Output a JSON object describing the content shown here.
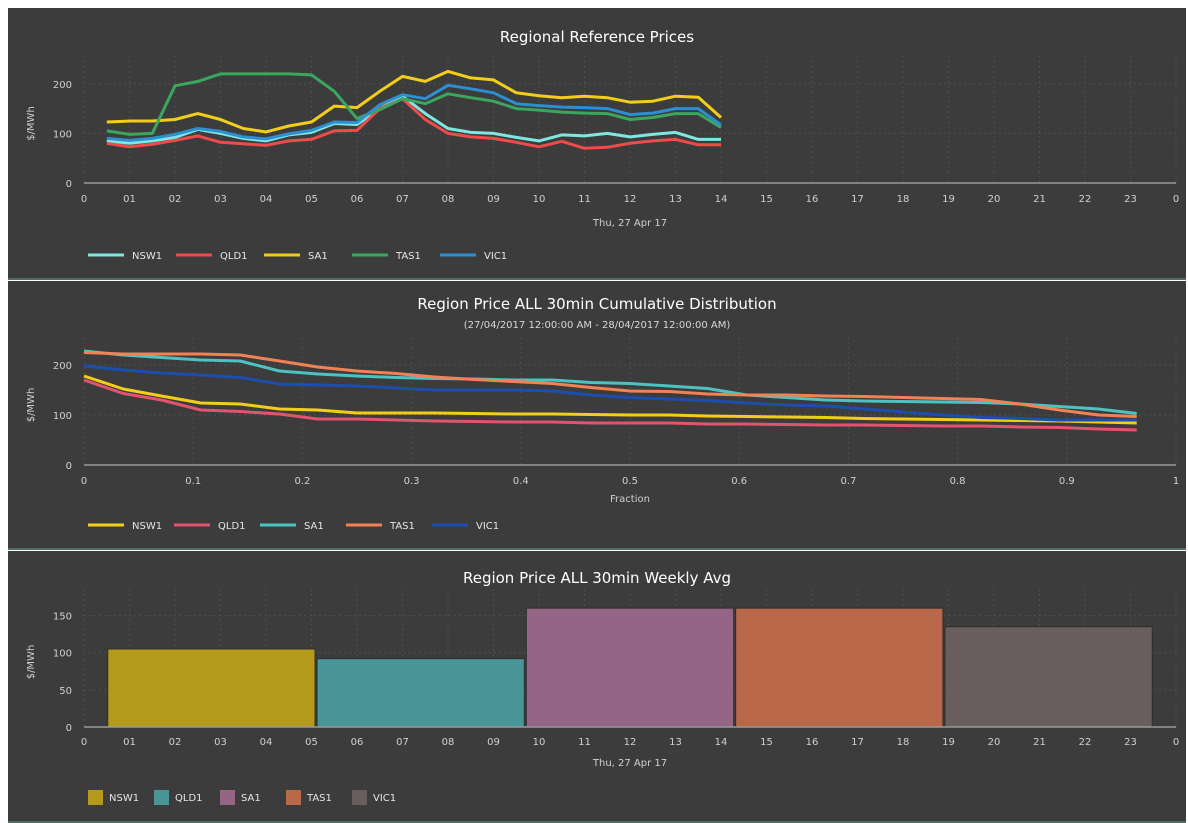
{
  "chart_data": [
    {
      "id": "regional-prices",
      "type": "line",
      "title": "Regional Reference Prices",
      "subtitle": "",
      "xlabel": "Thu, 27 Apr 17",
      "ylabel": "$/MWh",
      "xlim": [
        0,
        24
      ],
      "ylim": [
        0,
        240
      ],
      "yticks": [
        0,
        100,
        200
      ],
      "xtick_labels": [
        "0",
        "01",
        "02",
        "03",
        "04",
        "05",
        "06",
        "07",
        "08",
        "09",
        "10",
        "11",
        "12",
        "13",
        "14",
        "15",
        "16",
        "17",
        "18",
        "19",
        "20",
        "21",
        "22",
        "23",
        "0"
      ],
      "x": [
        0.5,
        1,
        1.5,
        2,
        2.5,
        3,
        3.5,
        4,
        4.5,
        5,
        5.5,
        6,
        6.5,
        7,
        7.5,
        8,
        8.5,
        9,
        9.5,
        10,
        10.5,
        11,
        11.5,
        12,
        12.5,
        13,
        13.5,
        14
      ],
      "series": [
        {
          "name": "NSW1",
          "color": "#7fe6e0",
          "values": [
            85,
            80,
            85,
            92,
            108,
            100,
            90,
            85,
            97,
            102,
            120,
            118,
            150,
            175,
            140,
            110,
            102,
            100,
            92,
            85,
            97,
            95,
            100,
            93,
            98,
            102,
            88,
            88
          ]
        },
        {
          "name": "QLD1",
          "color": "#ee4b4b",
          "values": [
            80,
            73,
            78,
            86,
            95,
            82,
            79,
            76,
            85,
            88,
            105,
            106,
            150,
            170,
            128,
            100,
            93,
            90,
            82,
            73,
            84,
            70,
            72,
            80,
            85,
            88,
            77,
            77
          ]
        },
        {
          "name": "SA1",
          "color": "#f2ce1b",
          "values": [
            123,
            125,
            125,
            128,
            140,
            128,
            110,
            103,
            115,
            123,
            155,
            152,
            185,
            215,
            205,
            225,
            212,
            208,
            182,
            176,
            172,
            175,
            172,
            163,
            165,
            175,
            173,
            132
          ]
        },
        {
          "name": "TAS1",
          "color": "#3aa65e",
          "values": [
            105,
            98,
            100,
            196,
            205,
            220,
            220,
            220,
            220,
            218,
            185,
            130,
            148,
            170,
            160,
            180,
            172,
            165,
            150,
            147,
            143,
            141,
            140,
            128,
            132,
            140,
            140,
            112
          ]
        },
        {
          "name": "VIC1",
          "color": "#2c8fd1",
          "values": [
            90,
            86,
            90,
            98,
            110,
            104,
            93,
            89,
            99,
            106,
            123,
            122,
            158,
            178,
            170,
            197,
            190,
            182,
            160,
            156,
            153,
            152,
            150,
            138,
            141,
            150,
            150,
            117
          ]
        }
      ]
    },
    {
      "id": "cumulative-distribution",
      "type": "line",
      "title": "Region Price ALL 30min Cumulative Distribution",
      "subtitle": "(27/04/2017 12:00:00 AM - 28/04/2017 12:00:00 AM)",
      "xlabel": "Fraction",
      "ylabel": "$/MWh",
      "xlim": [
        0,
        1
      ],
      "ylim": [
        0,
        240
      ],
      "yticks": [
        0,
        100,
        200
      ],
      "xtick_labels": [
        "0",
        "0.1",
        "0.2",
        "0.3",
        "0.4",
        "0.5",
        "0.6",
        "0.7",
        "0.8",
        "0.9",
        "1"
      ],
      "x": [
        0,
        0.036,
        0.071,
        0.107,
        0.143,
        0.179,
        0.214,
        0.25,
        0.286,
        0.321,
        0.357,
        0.393,
        0.429,
        0.464,
        0.5,
        0.536,
        0.571,
        0.607,
        0.643,
        0.679,
        0.714,
        0.75,
        0.786,
        0.821,
        0.857,
        0.893,
        0.929,
        0.964
      ],
      "series": [
        {
          "name": "NSW1",
          "color": "#f2ce1b",
          "values": [
            178,
            152,
            138,
            124,
            122,
            112,
            110,
            104,
            104,
            104,
            103,
            102,
            102,
            101,
            100,
            100,
            98,
            97,
            96,
            95,
            93,
            92,
            91,
            90,
            89,
            88,
            86,
            84
          ]
        },
        {
          "name": "QLD1",
          "color": "#e2546e",
          "values": [
            170,
            143,
            130,
            110,
            107,
            102,
            92,
            92,
            90,
            88,
            87,
            86,
            86,
            84,
            84,
            84,
            82,
            82,
            81,
            80,
            80,
            79,
            78,
            78,
            76,
            75,
            72,
            70
          ]
        },
        {
          "name": "SA1",
          "color": "#4cc2c2",
          "values": [
            228,
            220,
            215,
            210,
            208,
            188,
            182,
            178,
            175,
            173,
            172,
            170,
            170,
            165,
            163,
            158,
            153,
            140,
            135,
            130,
            128,
            127,
            126,
            125,
            122,
            117,
            112,
            103
          ]
        },
        {
          "name": "TAS1",
          "color": "#f08255",
          "values": [
            225,
            222,
            222,
            222,
            220,
            208,
            196,
            188,
            183,
            176,
            171,
            167,
            163,
            155,
            148,
            147,
            142,
            140,
            140,
            138,
            137,
            135,
            133,
            131,
            122,
            110,
            100,
            97
          ]
        },
        {
          "name": "VIC1",
          "color": "#1c4eb0",
          "values": [
            198,
            190,
            184,
            180,
            175,
            162,
            160,
            158,
            154,
            150,
            150,
            150,
            148,
            140,
            135,
            132,
            129,
            124,
            120,
            118,
            112,
            106,
            100,
            95,
            93,
            90,
            90,
            90
          ]
        }
      ]
    },
    {
      "id": "weekly-avg",
      "type": "bar",
      "title": "Region Price ALL 30min Weekly Avg",
      "subtitle": "",
      "xlabel": "Thu, 27 Apr 17",
      "ylabel": "$/MWh",
      "xlim": [
        0,
        24
      ],
      "ylim": [
        0,
        175
      ],
      "yticks": [
        0,
        50,
        100,
        150
      ],
      "xtick_labels": [
        "0",
        "01",
        "02",
        "03",
        "04",
        "05",
        "06",
        "07",
        "08",
        "09",
        "10",
        "11",
        "12",
        "13",
        "14",
        "15",
        "16",
        "17",
        "18",
        "19",
        "20",
        "21",
        "22",
        "23",
        "0"
      ],
      "categories": [
        "NSW1",
        "QLD1",
        "SA1",
        "TAS1",
        "VIC1"
      ],
      "values": [
        105,
        92,
        160,
        160,
        135
      ],
      "bar_ranges": [
        [
          0.5,
          5.1
        ],
        [
          5.1,
          9.7
        ],
        [
          9.7,
          14.3
        ],
        [
          14.3,
          18.9
        ],
        [
          18.9,
          23.5
        ]
      ],
      "colors": [
        "#b39a1b",
        "#4a9598",
        "#946584",
        "#b9694a",
        "#675e5d"
      ]
    }
  ]
}
